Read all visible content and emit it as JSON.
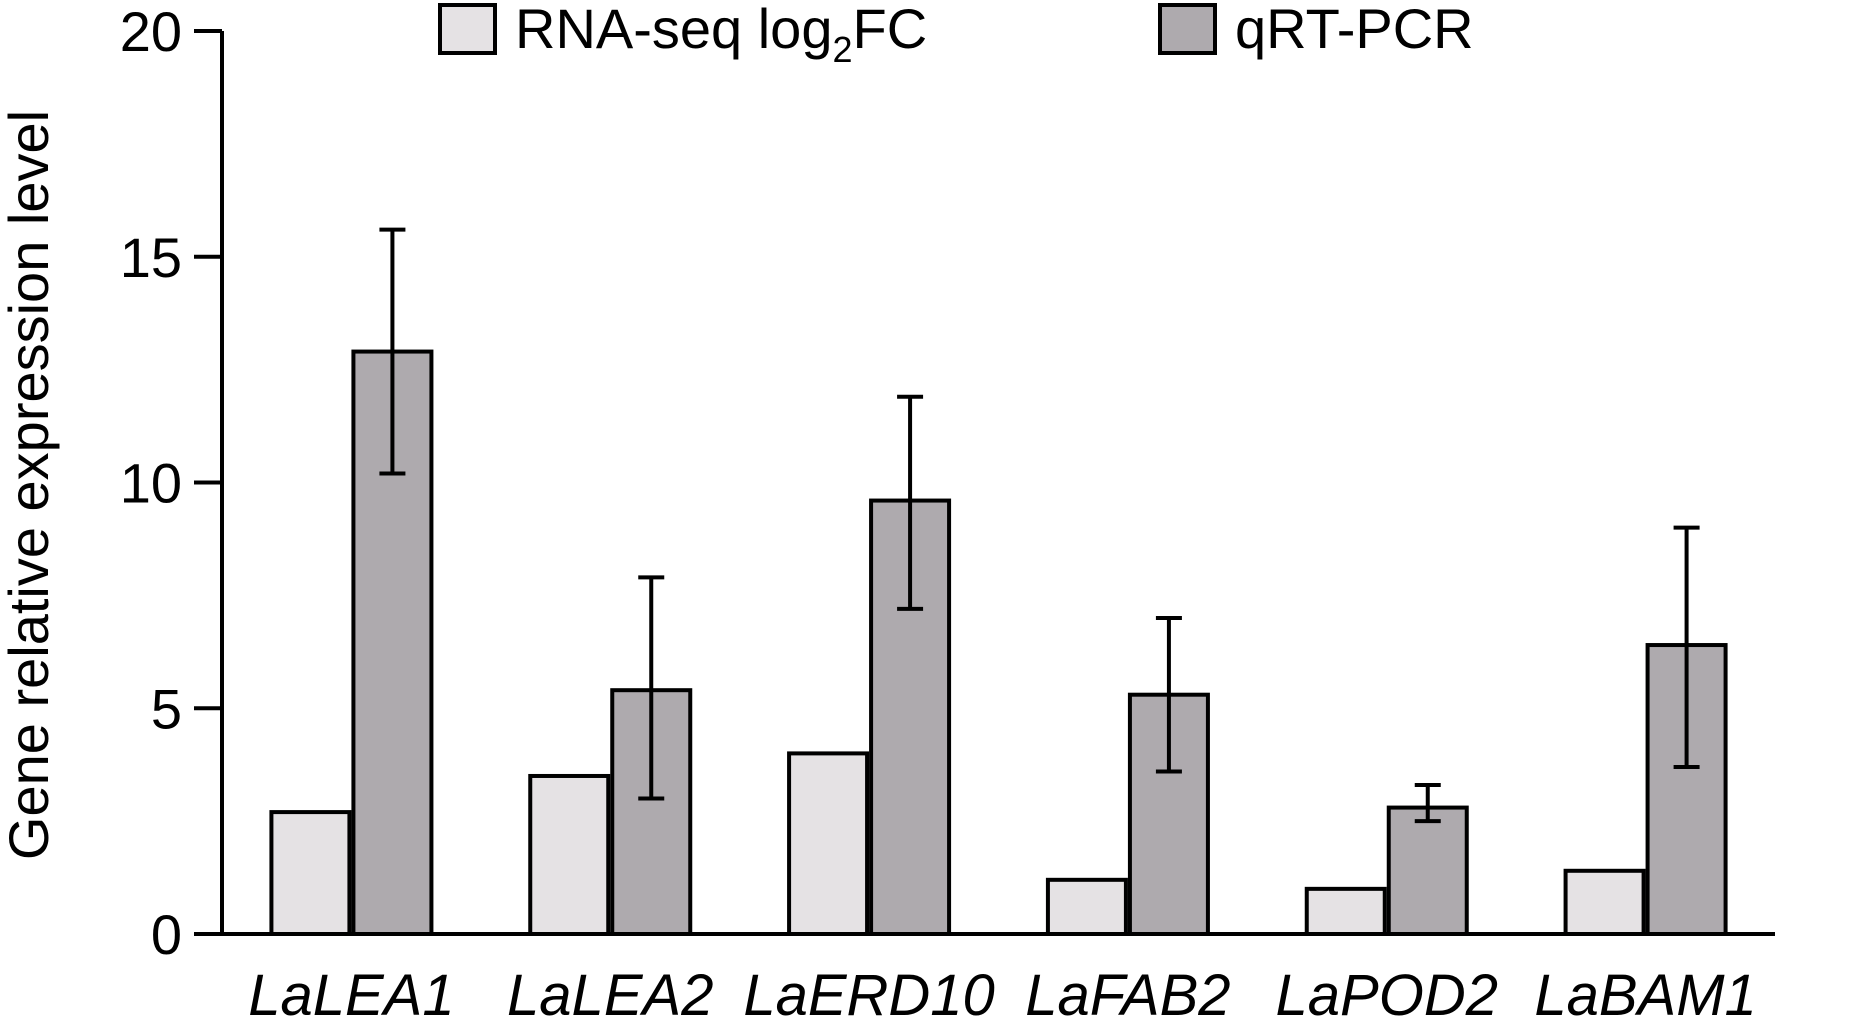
{
  "chart_data": {
    "type": "bar",
    "ylabel": "Gene relative expression level",
    "ylim": [
      0,
      20
    ],
    "yticks": [
      "0",
      "5",
      "10",
      "15",
      "20"
    ],
    "categories": [
      "LaLEA1",
      "LaLEA2",
      "LaERD10",
      "LaFAB2",
      "LaPOD2",
      "LaBAM1"
    ],
    "series": [
      {
        "name": "RNA-seq log2FC",
        "color": "#e5e2e4",
        "values": [
          2.7,
          3.5,
          4.0,
          1.2,
          1.0,
          1.4
        ]
      },
      {
        "name": "qRT-PCR",
        "color": "#aeaaae",
        "values": [
          12.9,
          5.4,
          9.6,
          5.3,
          2.8,
          6.4
        ],
        "error_low": [
          10.2,
          3.0,
          7.2,
          3.6,
          2.5,
          3.7
        ],
        "error_high": [
          15.6,
          7.9,
          11.9,
          7.0,
          3.3,
          9.0
        ]
      }
    ],
    "legend": {
      "position": "top",
      "rnaseq_main": "RNA-seq log",
      "rnaseq_sub": "2",
      "rnaseq_tail": "FC",
      "qrt": "qRT-PCR"
    },
    "grid": false
  }
}
